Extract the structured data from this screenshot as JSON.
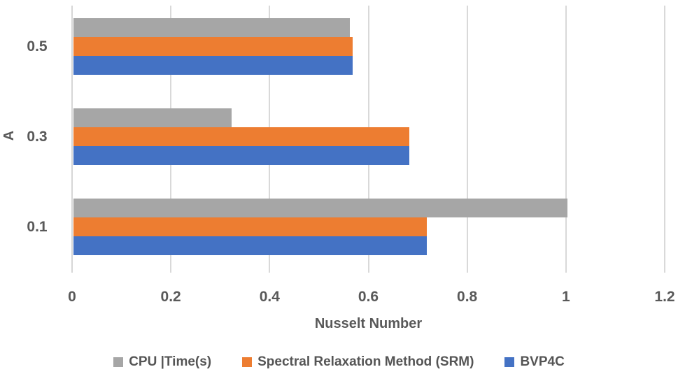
{
  "chart_data": {
    "type": "bar",
    "orientation": "horizontal",
    "title": "",
    "xlabel": "Nusselt Number",
    "ylabel": "A",
    "xlim": [
      0,
      1.2
    ],
    "xticks": [
      0,
      0.2,
      0.4,
      0.6,
      0.8,
      1,
      1.2
    ],
    "xtick_labels": [
      "0",
      "0.2",
      "0.4",
      "0.6",
      "0.8",
      "1",
      "1.2"
    ],
    "categories": [
      "0.5",
      "0.3",
      "0.1"
    ],
    "series": [
      {
        "name": "CPU |Time(s)",
        "color": "#A6A6A6",
        "values": [
          0.56,
          0.32,
          1.0
        ]
      },
      {
        "name": "Spectral Relaxation Method (SRM)",
        "color": "#ED7D31",
        "values": [
          0.565,
          0.68,
          0.715
        ]
      },
      {
        "name": "BVP4C",
        "color": "#4472C4",
        "values": [
          0.565,
          0.68,
          0.715
        ]
      }
    ],
    "grid": true,
    "legend_position": "bottom",
    "gridline_color": "#D9D9D9",
    "text_color": "#595959",
    "background": "#FFFFFF"
  }
}
